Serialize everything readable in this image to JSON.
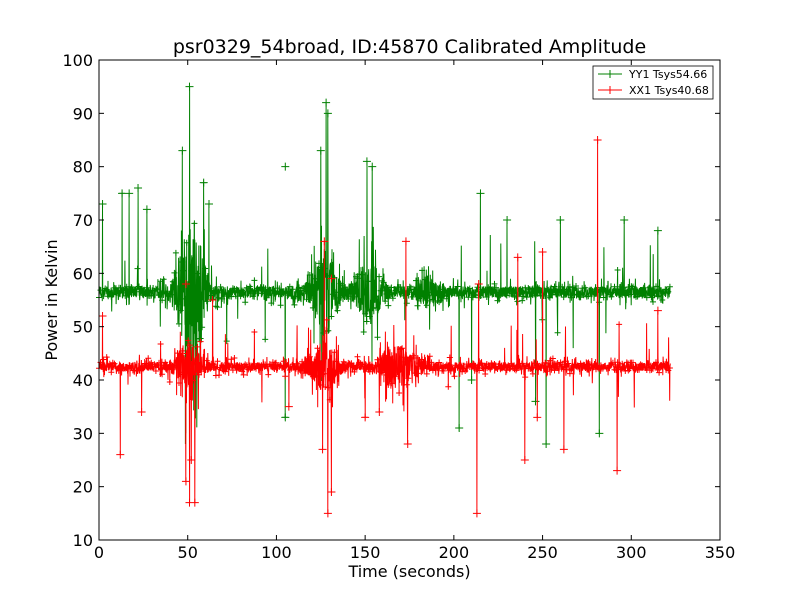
{
  "chart_data": {
    "type": "line",
    "title": "psr0329_54broad, ID:45870 Calibrated Amplitude",
    "xlabel": "Time (seconds)",
    "ylabel": "Power in Kelvin",
    "xlim": [
      0,
      350
    ],
    "ylim": [
      10,
      100
    ],
    "xticks": [
      0,
      50,
      100,
      150,
      200,
      250,
      300,
      350
    ],
    "yticks": [
      10,
      20,
      30,
      40,
      50,
      60,
      70,
      80,
      90,
      100
    ],
    "grid": false,
    "legend_position": "top-right",
    "series": [
      {
        "name": "YY1 Tsys54.66",
        "color": "#008000",
        "baseline": 56.5,
        "noise": 1.8,
        "x_range": [
          0,
          322
        ],
        "clusters": [
          {
            "x": 50,
            "peak": 85
          },
          {
            "x": 53,
            "peak": 95
          },
          {
            "x": 127,
            "peak": 91
          },
          {
            "x": 152,
            "peak": 81
          },
          {
            "x": 186,
            "peak": 67
          }
        ],
        "spikes_high": [
          {
            "x": 2,
            "y": 73
          },
          {
            "x": 13,
            "y": 75
          },
          {
            "x": 17,
            "y": 75
          },
          {
            "x": 22,
            "y": 76
          },
          {
            "x": 27,
            "y": 72
          },
          {
            "x": 47,
            "y": 83
          },
          {
            "x": 51,
            "y": 95
          },
          {
            "x": 59,
            "y": 77
          },
          {
            "x": 62,
            "y": 73
          },
          {
            "x": 105,
            "y": 80
          },
          {
            "x": 125,
            "y": 83
          },
          {
            "x": 128,
            "y": 92
          },
          {
            "x": 129,
            "y": 90
          },
          {
            "x": 151,
            "y": 81
          },
          {
            "x": 154,
            "y": 80
          },
          {
            "x": 215,
            "y": 75
          },
          {
            "x": 230,
            "y": 70
          },
          {
            "x": 260,
            "y": 70
          },
          {
            "x": 296,
            "y": 70
          },
          {
            "x": 315,
            "y": 68
          }
        ],
        "spikes_low": [
          {
            "x": 105,
            "y": 33
          },
          {
            "x": 203,
            "y": 31
          },
          {
            "x": 210,
            "y": 40
          },
          {
            "x": 246,
            "y": 36
          },
          {
            "x": 252,
            "y": 28
          },
          {
            "x": 282,
            "y": 30
          }
        ]
      },
      {
        "name": "XX1 Tsys40.68",
        "color": "#ff0000",
        "baseline": 42.5,
        "noise": 1.4,
        "x_range": [
          0,
          322
        ],
        "clusters": [
          {
            "x": 50,
            "peak": 60
          },
          {
            "x": 127,
            "peak": 62
          },
          {
            "x": 165,
            "peak": 57
          },
          {
            "x": 175,
            "peak": 52
          }
        ],
        "spikes_high": [
          {
            "x": 2,
            "y": 52
          },
          {
            "x": 49,
            "y": 58
          },
          {
            "x": 64,
            "y": 55
          },
          {
            "x": 127,
            "y": 66
          },
          {
            "x": 131,
            "y": 59
          },
          {
            "x": 173,
            "y": 66
          },
          {
            "x": 214,
            "y": 58
          },
          {
            "x": 236,
            "y": 63
          },
          {
            "x": 250,
            "y": 64
          },
          {
            "x": 281,
            "y": 85
          },
          {
            "x": 315,
            "y": 53
          }
        ],
        "spikes_low": [
          {
            "x": 12,
            "y": 26
          },
          {
            "x": 24,
            "y": 34
          },
          {
            "x": 49,
            "y": 21
          },
          {
            "x": 51,
            "y": 17
          },
          {
            "x": 52,
            "y": 25
          },
          {
            "x": 54,
            "y": 17
          },
          {
            "x": 107,
            "y": 35
          },
          {
            "x": 126,
            "y": 27
          },
          {
            "x": 129,
            "y": 15
          },
          {
            "x": 131,
            "y": 19
          },
          {
            "x": 150,
            "y": 33
          },
          {
            "x": 158,
            "y": 34
          },
          {
            "x": 174,
            "y": 28
          },
          {
            "x": 213,
            "y": 15
          },
          {
            "x": 240,
            "y": 25
          },
          {
            "x": 247,
            "y": 33
          },
          {
            "x": 262,
            "y": 27
          },
          {
            "x": 292,
            "y": 23
          }
        ]
      }
    ]
  }
}
